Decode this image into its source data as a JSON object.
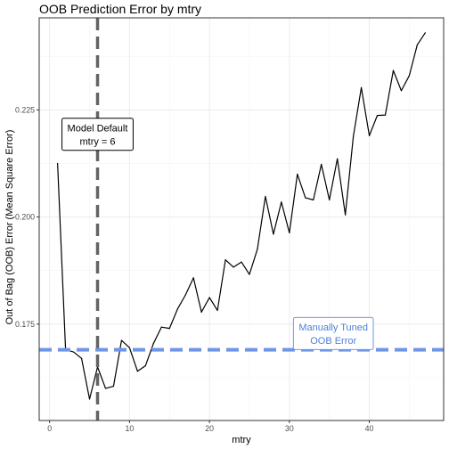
{
  "chart_data": {
    "type": "line",
    "title": "OOB Prediction Error by mtry",
    "xlabel": "mtry",
    "ylabel": "Out of Bag (OOB) Error (Mean Square Error)",
    "xlim": [
      -1.3,
      49.3
    ],
    "ylim": [
      0.1525,
      0.2465
    ],
    "xticks": [
      0,
      10,
      20,
      30,
      40
    ],
    "xtick_labels": [
      "0",
      "10",
      "20",
      "30",
      "40"
    ],
    "yticks": [
      0.175,
      0.2,
      0.225
    ],
    "ytick_labels": [
      "0.175",
      "0.200",
      "0.225"
    ],
    "grid": true,
    "series": [
      {
        "x": [
          1,
          2,
          3,
          4,
          5,
          6,
          7,
          8,
          9,
          10,
          11,
          12,
          13,
          14,
          15,
          16,
          17,
          18,
          19,
          20,
          21,
          22,
          23,
          24,
          25,
          26,
          27,
          28,
          29,
          30,
          31,
          32,
          33,
          34,
          35,
          36,
          37,
          38,
          39,
          40,
          41,
          42,
          43,
          44,
          45,
          46,
          47
        ],
        "values": [
          0.2125,
          0.169,
          0.1685,
          0.167,
          0.1575,
          0.165,
          0.16,
          0.1605,
          0.1712,
          0.1695,
          0.164,
          0.1653,
          0.1705,
          0.1743,
          0.174,
          0.1785,
          0.1818,
          0.1858,
          0.1778,
          0.1812,
          0.1782,
          0.19,
          0.1883,
          0.1895,
          0.1866,
          0.1925,
          0.2048,
          0.196,
          0.2035,
          0.1963,
          0.21,
          0.2045,
          0.204,
          0.2123,
          0.204,
          0.2136,
          0.2005,
          0.2188,
          0.2302,
          0.219,
          0.2237,
          0.2238,
          0.2342,
          0.2295,
          0.233,
          0.2402,
          0.243
        ],
        "color": "#000000"
      }
    ],
    "reference_lines": [
      {
        "orientation": "vertical",
        "x": 6,
        "color": "#636363",
        "style": "dashed"
      },
      {
        "orientation": "horizontal",
        "y": 0.169,
        "color": "#6d96e8",
        "style": "dashed"
      }
    ],
    "annotations": [
      {
        "lines": [
          "Model Default",
          "mtry = 6"
        ],
        "x": 6,
        "y": 0.2193,
        "text_color": "#000000",
        "border_color": "#000000"
      },
      {
        "lines": [
          "Manually Tuned",
          "OOB Error"
        ],
        "x": 35.5,
        "y": 0.1728,
        "text_color": "#4f7fd6",
        "border_color": "#6d96e8"
      }
    ]
  }
}
